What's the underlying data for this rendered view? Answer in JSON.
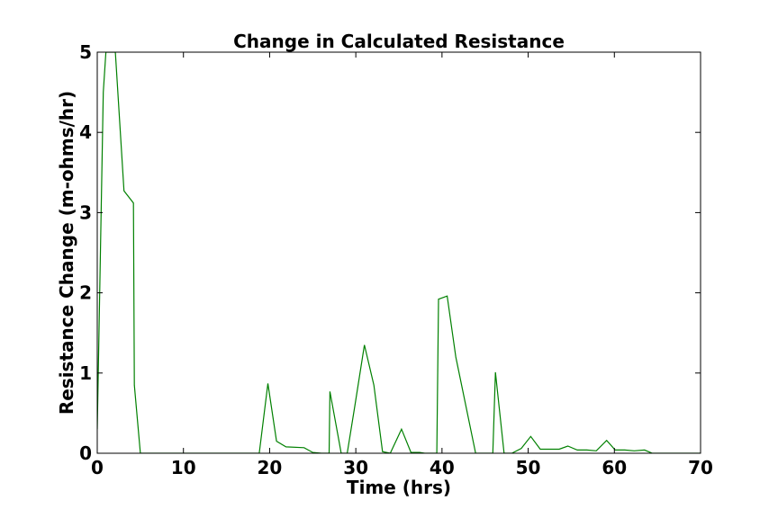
{
  "chart_data": {
    "type": "line",
    "title": "Change in Calculated Resistance",
    "xlabel": "Time (hrs)",
    "ylabel": "Resistance Change (m-ohms/hr)",
    "xlim": [
      0,
      70
    ],
    "ylim": [
      0,
      5
    ],
    "xticks": [
      "0",
      "10",
      "20",
      "30",
      "40",
      "50",
      "60",
      "70"
    ],
    "yticks": [
      "0",
      "1",
      "2",
      "3",
      "4",
      "5"
    ],
    "grid": false,
    "legend": "none",
    "series": [
      {
        "color": "#008000",
        "x": [
          0,
          0.7,
          1.0,
          1.5,
          2.1,
          3.1,
          4.2,
          4.3,
          5,
          10,
          15,
          18.8,
          19.8,
          20.8,
          21.9,
          24.0,
          25.0,
          26,
          26.9,
          27.0,
          28.0,
          28.3,
          29,
          29.9,
          31.0,
          32.1,
          33.1,
          34,
          35.3,
          36.4,
          37.4,
          38,
          39.4,
          39.6,
          40.6,
          41.6,
          43.9,
          45.9,
          46.2,
          47.2,
          48.1,
          49.2,
          50.3,
          51.4,
          52.5,
          53.6,
          54.6,
          55.7,
          56.8,
          57.9,
          59.1,
          60.1,
          61.2,
          62.3,
          63.5,
          64.4,
          65,
          70
        ],
        "y": [
          0.3,
          4.5,
          5.0,
          5.0,
          5.0,
          3.27,
          3.12,
          0.85,
          0,
          0,
          0,
          0,
          0.87,
          0.15,
          0.08,
          0.07,
          0.01,
          0,
          0,
          0.77,
          0.18,
          0,
          0,
          0.6,
          1.35,
          0.85,
          0.02,
          0,
          0.3,
          0.01,
          0.01,
          0,
          0,
          1.92,
          1.96,
          1.2,
          0,
          0,
          1.01,
          0,
          0,
          0.06,
          0.21,
          0.05,
          0.05,
          0.05,
          0.09,
          0.04,
          0.04,
          0.03,
          0.16,
          0.04,
          0.04,
          0.03,
          0.04,
          0,
          0,
          0
        ]
      }
    ]
  }
}
